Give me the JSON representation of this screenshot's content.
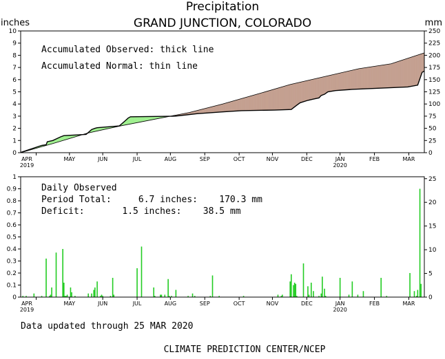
{
  "title": "Precipitation",
  "subtitle": "GRAND JUNCTION, COLORADO",
  "footer": {
    "updated": "Data updated through 25 MAR 2020",
    "credit": "CLIMATE PREDICTION CENTER/NCEP"
  },
  "colors": {
    "surplus": "#a0f090",
    "deficit": "#c4a090",
    "bars": "#22cc22",
    "line": "#000000"
  },
  "months": [
    "APR",
    "MAY",
    "JUN",
    "JUL",
    "AUG",
    "SEP",
    "OCT",
    "NOV",
    "DEC",
    "JAN",
    "FEB",
    "MAR"
  ],
  "year_labels": [
    {
      "month_index": 0,
      "text": "2019"
    },
    {
      "month_index": 9,
      "text": "2020"
    }
  ],
  "chart_data": [
    {
      "type": "line",
      "title": "",
      "left_unit": "inches",
      "right_unit": "mm",
      "ylim": [
        0,
        10
      ],
      "y_ticks": [
        0,
        1,
        2,
        3,
        4,
        5,
        6,
        7,
        8,
        9,
        10
      ],
      "y_right_ticks": [
        0,
        25,
        50,
        75,
        100,
        125,
        150,
        175,
        200,
        225,
        250
      ],
      "annotations": [
        "Accumulated Observed: thick line",
        "Accumulated Normal: thin line"
      ],
      "x_unit": "day of water year (day 1 = 1 APR 2019)",
      "series": [
        {
          "key": "observed",
          "x": [
            1,
            20,
            24,
            25,
            30,
            37,
            40,
            60,
            65,
            68,
            70,
            90,
            95,
            98,
            100,
            140,
            150,
            160,
            183,
            200,
            230,
            245,
            250,
            253,
            260,
            265,
            270,
            272,
            275,
            278,
            285,
            300,
            325,
            350,
            359,
            363,
            365
          ],
          "y": [
            0.02,
            0.6,
            0.65,
            0.9,
            1.0,
            1.3,
            1.4,
            1.5,
            1.9,
            2.0,
            2.05,
            2.2,
            2.6,
            2.85,
            2.95,
            3.0,
            3.1,
            3.2,
            3.35,
            3.45,
            3.5,
            3.55,
            3.9,
            4.1,
            4.3,
            4.4,
            4.5,
            4.7,
            4.8,
            5.0,
            5.1,
            5.2,
            5.3,
            5.4,
            5.55,
            6.6,
            6.7
          ]
        },
        {
          "key": "normal",
          "x": [
            1,
            30,
            61,
            91,
            122,
            153,
            183,
            214,
            244,
            275,
            306,
            335,
            365
          ],
          "y": [
            0.0,
            0.75,
            1.6,
            2.2,
            2.75,
            3.3,
            4.0,
            4.8,
            5.6,
            6.25,
            6.9,
            7.3,
            8.2
          ]
        }
      ]
    },
    {
      "type": "bar",
      "title": "",
      "left_unit": "",
      "right_unit": "",
      "ylim": [
        0,
        1
      ],
      "y_ticks": [
        0,
        0.1,
        0.2,
        0.3,
        0.4,
        0.5,
        0.6,
        0.7,
        0.8,
        0.9,
        1
      ],
      "y_right_ticks": [
        0,
        5,
        10,
        15,
        20,
        25
      ],
      "annotations": [
        "Daily Observed",
        "Period Total:     6.7 inches:    170.3 mm",
        "Deficit:       1.5 inches:    38.5 mm"
      ],
      "x_unit": "day of water year (day 1 = 1 APR 2019)",
      "days": [
        3,
        6,
        13,
        20,
        24,
        27,
        28,
        29,
        33,
        39,
        40,
        41,
        42,
        43,
        46,
        47,
        50,
        62,
        65,
        67,
        68,
        70,
        73,
        74,
        75,
        82,
        84,
        85,
        106,
        110,
        121,
        122,
        127,
        128,
        131,
        134,
        135,
        137,
        141,
        152,
        156,
        158,
        172,
        174,
        180,
        202,
        233,
        236,
        237,
        244,
        245,
        247,
        248,
        249,
        250,
        256,
        260,
        261,
        263,
        265,
        270,
        272,
        273,
        275,
        276,
        289,
        297,
        300,
        305,
        310,
        326,
        331,
        352,
        356,
        358,
        359,
        361,
        362
      ],
      "values": [
        0.01,
        0.01,
        0.03,
        0.01,
        0.32,
        0.01,
        0.02,
        0.08,
        0.37,
        0.4,
        0.12,
        0.01,
        0.01,
        0.02,
        0.08,
        0.04,
        0.01,
        0.03,
        0.03,
        0.06,
        0.08,
        0.13,
        0.01,
        0.02,
        0.01,
        0.01,
        0.16,
        0.02,
        0.24,
        0.42,
        0.08,
        0.01,
        0.02,
        0.02,
        0.02,
        0.15,
        0.01,
        0.01,
        0.06,
        0.01,
        0.03,
        0.01,
        0.01,
        0.18,
        0.01,
        0.01,
        0.02,
        0.01,
        0.02,
        0.13,
        0.19,
        0.1,
        0.12,
        0.11,
        0.01,
        0.28,
        0.09,
        0.02,
        0.12,
        0.05,
        0.01,
        0.03,
        0.17,
        0.07,
        0.01,
        0.16,
        0.02,
        0.13,
        0.02,
        0.05,
        0.16,
        0.01,
        0.2,
        0.05,
        0.01,
        0.06,
        0.9,
        0.11
      ]
    }
  ]
}
